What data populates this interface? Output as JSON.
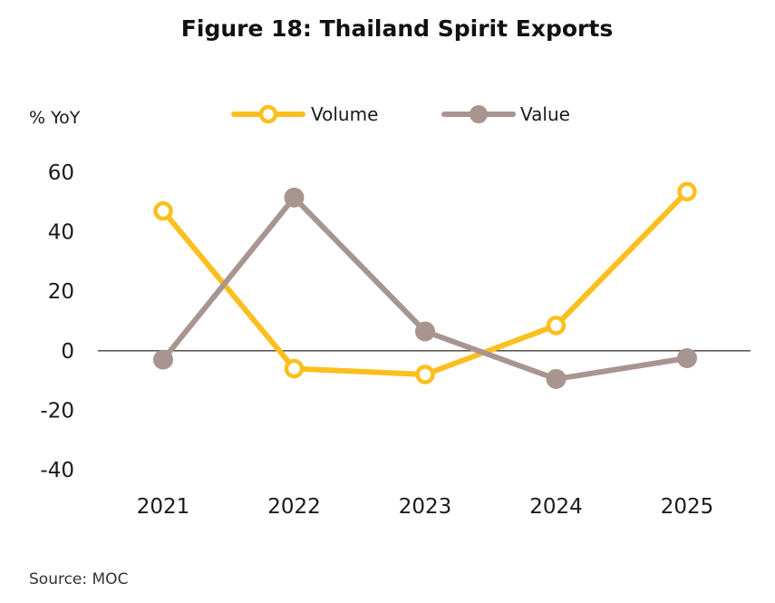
{
  "chart_data": {
    "type": "line",
    "title": "Figure 18: Thailand Spirit Exports",
    "ylabel": "% YoY",
    "source": "Source: MOC",
    "categories": [
      "2021",
      "2022",
      "2023",
      "2024",
      "2025"
    ],
    "ylim": [
      -40,
      60
    ],
    "yticks": [
      60,
      40,
      20,
      0,
      -20,
      -40
    ],
    "ytick_labels": [
      "60",
      "40",
      "20",
      "0",
      "-20",
      "-40"
    ],
    "grid": false,
    "zero_line": true,
    "legend_position": "top",
    "series": [
      {
        "name": "Volume",
        "color": "#FBBF1F",
        "marker": "hollow-circle",
        "values": [
          47,
          -6,
          -8,
          8.5,
          53.5
        ]
      },
      {
        "name": "Value",
        "color": "#A89590",
        "marker": "filled-circle",
        "values": [
          -3,
          51.5,
          6.5,
          -9.5,
          -2.5
        ]
      }
    ]
  }
}
